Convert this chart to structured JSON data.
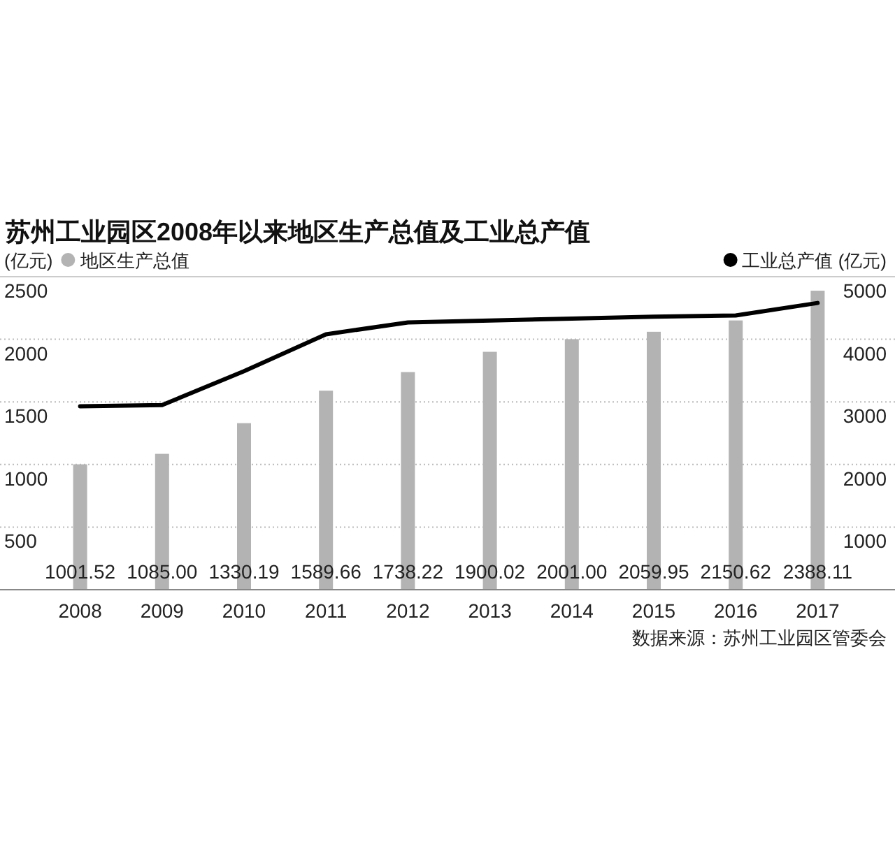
{
  "chart_data": {
    "type": "bar",
    "title": "苏州工业园区2008年以来地区生产总值及工业总产值",
    "ylabel": "(亿元)",
    "y2label": "(亿元)",
    "categories": [
      "2008",
      "2009",
      "2010",
      "2011",
      "2012",
      "2013",
      "2014",
      "2015",
      "2016",
      "2017"
    ],
    "series": [
      {
        "name": "地区生产总值",
        "color": "#b3b3b3",
        "values": [
          1001.52,
          1085.0,
          1330.19,
          1589.66,
          1738.22,
          1900.02,
          2001.0,
          2059.95,
          2150.62,
          2388.11
        ],
        "value_labels": [
          "1001.52",
          "1085.00",
          "1330.19",
          "1589.66",
          "1738.22",
          "1900.02",
          "2001.00",
          "2059.95",
          "2150.62",
          "2388.11"
        ]
      },
      {
        "name": "工业总产值",
        "type": "line",
        "axis": "y2",
        "color": "#000000",
        "values": [
          2930,
          2950,
          3490,
          4080,
          4270,
          4300,
          4330,
          4360,
          4380,
          4580
        ]
      }
    ],
    "ylim": [
      0,
      2500
    ],
    "yticks": [
      500,
      1000,
      1500,
      2000,
      2500
    ],
    "y2lim": [
      0,
      5000
    ],
    "y2ticks": [
      1000,
      2000,
      3000,
      4000,
      5000
    ],
    "grid": "y",
    "legend": "top",
    "annotations": [
      "数据来源：苏州工业园区管委会"
    ]
  }
}
